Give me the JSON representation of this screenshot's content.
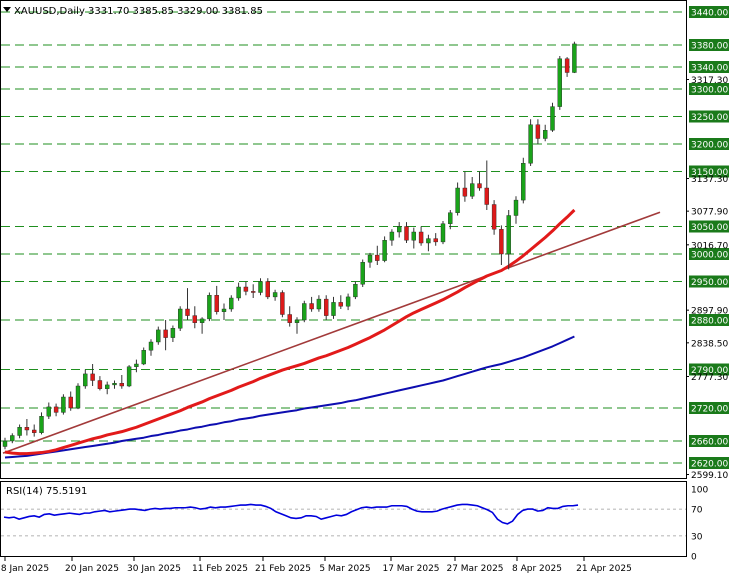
{
  "header": {
    "symbol": "XAUUSD,Daily",
    "ohlc": "3331.70 3385.85 3329.00 3381.85"
  },
  "rsi": {
    "label": "RSI(14) 75.5191",
    "levels": [
      "100",
      "70",
      "30",
      "0"
    ],
    "values": [
      58,
      57,
      58,
      55,
      57,
      59,
      60,
      58,
      62,
      63,
      61,
      62,
      63,
      64,
      63,
      62,
      64,
      64,
      66,
      67,
      68,
      66,
      67,
      68,
      69,
      70,
      70,
      69,
      68,
      70,
      71,
      70,
      71,
      71,
      72,
      72,
      72,
      73,
      72,
      70,
      71,
      73,
      72,
      73,
      73,
      74,
      75,
      76,
      76,
      77,
      76,
      76,
      74,
      71,
      66,
      63,
      60,
      57,
      56,
      57,
      60,
      60,
      59,
      55,
      57,
      59,
      61,
      60,
      62,
      66,
      69,
      72,
      73,
      72,
      73,
      73,
      73,
      75,
      75,
      75,
      74,
      70,
      67,
      66,
      66,
      66,
      67,
      70,
      72,
      74,
      76,
      77,
      77,
      76,
      75,
      72,
      69,
      65,
      55,
      50,
      48,
      52,
      62,
      68,
      70,
      70,
      67,
      68,
      72,
      71,
      71,
      74,
      75,
      75,
      76
    ]
  },
  "colors": {
    "bull": "#1aa31a",
    "bear": "#dd1a1a",
    "grid": "#1f8f1f",
    "ema_fast": "#e21a1a",
    "ema_slow": "#0d0db0",
    "trendline": "#a23a3a",
    "rsi_line": "#0000dd",
    "level_box": "#1a7a1a"
  },
  "icons": {
    "collapse": "triangle-down-icon"
  },
  "chart_data": {
    "type": "candlestick",
    "title": "XAUUSD,Daily",
    "ylim": [
      2599.1,
      3445
    ],
    "key_levels": [
      3440,
      3380,
      3340,
      3300,
      3250,
      3200,
      3150,
      3050,
      3000,
      2950,
      2880,
      2790,
      2720,
      2660,
      2620
    ],
    "price_ticks": [
      "3317.30",
      "3137.30",
      "3077.90",
      "3016.70",
      "2897.90",
      "2838.50",
      "2777.30",
      "2599.10"
    ],
    "x_ticks": [
      "8 Jan 2025",
      "20 Jan 2025",
      "30 Jan 2025",
      "11 Feb 2025",
      "21 Feb 2025",
      "5 Mar 2025",
      "17 Mar 2025",
      "27 Mar 2025",
      "8 Apr 2025",
      "21 Apr 2025"
    ],
    "series": [
      {
        "name": "XAUUSD",
        "candles": [
          [
            2650,
            2666,
            2645,
            2660
          ],
          [
            2660,
            2674,
            2656,
            2670
          ],
          [
            2670,
            2690,
            2665,
            2685
          ],
          [
            2685,
            2700,
            2670,
            2680
          ],
          [
            2680,
            2690,
            2668,
            2675
          ],
          [
            2675,
            2712,
            2672,
            2705
          ],
          [
            2705,
            2730,
            2700,
            2722
          ],
          [
            2722,
            2728,
            2705,
            2712
          ],
          [
            2712,
            2745,
            2708,
            2740
          ],
          [
            2740,
            2750,
            2715,
            2720
          ],
          [
            2720,
            2765,
            2718,
            2760
          ],
          [
            2760,
            2790,
            2755,
            2782
          ],
          [
            2782,
            2800,
            2760,
            2770
          ],
          [
            2770,
            2778,
            2752,
            2755
          ],
          [
            2755,
            2768,
            2745,
            2762
          ],
          [
            2762,
            2770,
            2755,
            2765
          ],
          [
            2765,
            2780,
            2755,
            2760
          ],
          [
            2760,
            2798,
            2758,
            2795
          ],
          [
            2795,
            2808,
            2785,
            2800
          ],
          [
            2800,
            2830,
            2798,
            2825
          ],
          [
            2825,
            2845,
            2815,
            2840
          ],
          [
            2840,
            2868,
            2835,
            2862
          ],
          [
            2862,
            2880,
            2825,
            2848
          ],
          [
            2848,
            2870,
            2840,
            2865
          ],
          [
            2865,
            2905,
            2860,
            2900
          ],
          [
            2900,
            2938,
            2880,
            2888
          ],
          [
            2888,
            2905,
            2865,
            2875
          ],
          [
            2875,
            2885,
            2855,
            2882
          ],
          [
            2882,
            2930,
            2878,
            2925
          ],
          [
            2925,
            2942,
            2890,
            2895
          ],
          [
            2895,
            2910,
            2880,
            2900
          ],
          [
            2900,
            2925,
            2895,
            2920
          ],
          [
            2920,
            2948,
            2915,
            2940
          ],
          [
            2940,
            2950,
            2925,
            2932
          ],
          [
            2932,
            2945,
            2920,
            2930
          ],
          [
            2930,
            2956,
            2925,
            2950
          ],
          [
            2950,
            2956,
            2918,
            2922
          ],
          [
            2922,
            2935,
            2915,
            2930
          ],
          [
            2930,
            2934,
            2885,
            2890
          ],
          [
            2890,
            2905,
            2868,
            2875
          ],
          [
            2875,
            2885,
            2855,
            2880
          ],
          [
            2880,
            2915,
            2876,
            2910
          ],
          [
            2910,
            2922,
            2895,
            2900
          ],
          [
            2900,
            2925,
            2895,
            2918
          ],
          [
            2918,
            2925,
            2880,
            2888
          ],
          [
            2888,
            2922,
            2882,
            2912
          ],
          [
            2912,
            2925,
            2900,
            2905
          ],
          [
            2905,
            2928,
            2898,
            2922
          ],
          [
            2922,
            2950,
            2918,
            2945
          ],
          [
            2945,
            2990,
            2940,
            2985
          ],
          [
            2985,
            3002,
            2975,
            2998
          ],
          [
            2998,
            3015,
            2980,
            2988
          ],
          [
            2988,
            3032,
            2985,
            3025
          ],
          [
            3025,
            3045,
            3015,
            3040
          ],
          [
            3040,
            3058,
            3030,
            3050
          ],
          [
            3050,
            3058,
            3020,
            3025
          ],
          [
            3025,
            3048,
            3010,
            3040
          ],
          [
            3040,
            3050,
            3015,
            3020
          ],
          [
            3020,
            3035,
            3005,
            3028
          ],
          [
            3028,
            3038,
            3015,
            3022
          ],
          [
            3022,
            3060,
            3018,
            3055
          ],
          [
            3055,
            3080,
            3045,
            3075
          ],
          [
            3075,
            3130,
            3070,
            3120
          ],
          [
            3120,
            3150,
            3095,
            3105
          ],
          [
            3105,
            3140,
            3100,
            3128
          ],
          [
            3128,
            3150,
            3115,
            3120
          ],
          [
            3120,
            3170,
            3080,
            3090
          ],
          [
            3090,
            3098,
            3035,
            3045
          ],
          [
            3045,
            3052,
            2980,
            3000
          ],
          [
            3000,
            3080,
            2972,
            3070
          ],
          [
            3070,
            3105,
            3055,
            3098
          ],
          [
            3098,
            3175,
            3092,
            3165
          ],
          [
            3165,
            3245,
            3160,
            3235
          ],
          [
            3235,
            3245,
            3200,
            3210
          ],
          [
            3210,
            3235,
            3205,
            3225
          ],
          [
            3225,
            3275,
            3222,
            3268
          ],
          [
            3268,
            3360,
            3262,
            3355
          ],
          [
            3355,
            3358,
            3322,
            3330
          ],
          [
            3330,
            3386,
            3329,
            3382
          ]
        ]
      },
      {
        "name": "EMA fast",
        "values": [
          2640,
          2638,
          2637,
          2637,
          2638,
          2639,
          2641,
          2644,
          2648,
          2652,
          2656,
          2660,
          2664,
          2667,
          2671,
          2674,
          2677,
          2681,
          2685,
          2690,
          2695,
          2700,
          2705,
          2710,
          2715,
          2721,
          2726,
          2731,
          2737,
          2742,
          2747,
          2752,
          2758,
          2763,
          2768,
          2774,
          2779,
          2784,
          2789,
          2793,
          2797,
          2801,
          2806,
          2811,
          2815,
          2820,
          2825,
          2830,
          2836,
          2842,
          2848,
          2855,
          2862,
          2870,
          2878,
          2886,
          2893,
          2899,
          2905,
          2911,
          2917,
          2924,
          2931,
          2939,
          2946,
          2953,
          2960,
          2965,
          2970,
          2978,
          2987,
          2997,
          3008,
          3019,
          3030,
          3042,
          3055,
          3067,
          3080
        ]
      },
      {
        "name": "EMA slow",
        "values": [
          2630,
          2631,
          2632,
          2633,
          2635,
          2637,
          2639,
          2641,
          2643,
          2645,
          2647,
          2649,
          2651,
          2653,
          2655,
          2657,
          2660,
          2662,
          2664,
          2666,
          2669,
          2671,
          2674,
          2676,
          2679,
          2681,
          2684,
          2686,
          2689,
          2691,
          2694,
          2696,
          2699,
          2701,
          2703,
          2706,
          2708,
          2710,
          2712,
          2714,
          2716,
          2719,
          2721,
          2723,
          2725,
          2727,
          2729,
          2732,
          2734,
          2737,
          2740,
          2743,
          2746,
          2749,
          2752,
          2755,
          2758,
          2761,
          2764,
          2767,
          2770,
          2774,
          2778,
          2782,
          2786,
          2790,
          2794,
          2797,
          2800,
          2804,
          2808,
          2812,
          2817,
          2822,
          2827,
          2832,
          2838,
          2844,
          2850
        ]
      },
      {
        "name": "Trendline",
        "values": [
          2638,
          3076
        ]
      }
    ]
  }
}
